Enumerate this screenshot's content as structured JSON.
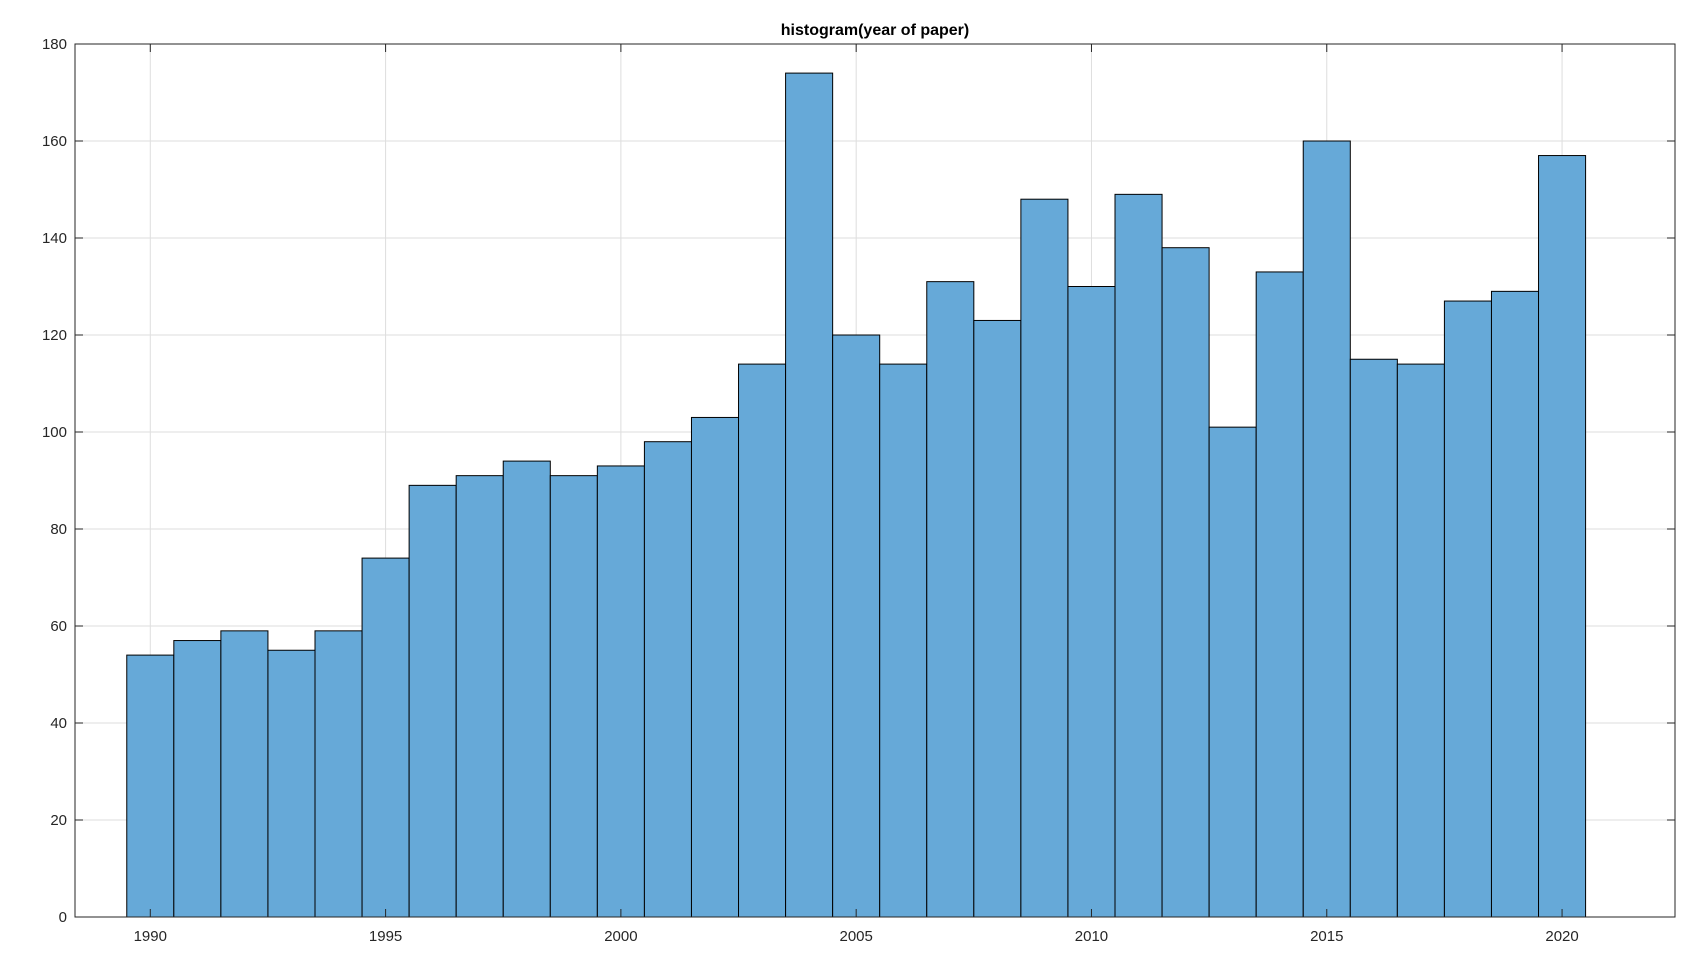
{
  "chart_data": {
    "type": "bar",
    "title": "histogram(year of paper)",
    "xlabel": "",
    "ylabel": "",
    "x": [
      1990,
      1991,
      1992,
      1993,
      1994,
      1995,
      1996,
      1997,
      1998,
      1999,
      2000,
      2001,
      2002,
      2003,
      2004,
      2005,
      2006,
      2007,
      2008,
      2009,
      2010,
      2011,
      2012,
      2013,
      2014,
      2015,
      2016,
      2017,
      2018,
      2019,
      2020
    ],
    "values": [
      54,
      57,
      59,
      55,
      59,
      74,
      89,
      91,
      94,
      91,
      93,
      98,
      103,
      114,
      174,
      120,
      114,
      131,
      123,
      148,
      130,
      149,
      138,
      101,
      133,
      160,
      115,
      114,
      127,
      129,
      157
    ],
    "xlim": [
      1988.4,
      2022.4
    ],
    "ylim": [
      0,
      180
    ],
    "xticks": [
      1990,
      1995,
      2000,
      2005,
      2010,
      2015,
      2020
    ],
    "yticks": [
      0,
      20,
      40,
      60,
      80,
      100,
      120,
      140,
      160,
      180
    ],
    "grid": true,
    "colors": {
      "bar_fill": "#66a9d8",
      "bar_edge": "#000000"
    }
  }
}
